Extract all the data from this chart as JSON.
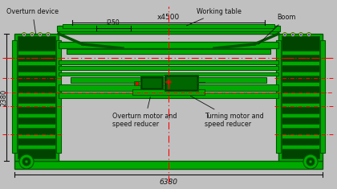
{
  "bg_color": "#c0c0c0",
  "G": "#00aa00",
  "DG": "#005500",
  "MG": "#003300",
  "RD": "#ff0000",
  "BK": "#111111",
  "YL": "#ffff00",
  "BL": "#0000cc",
  "labels": {
    "overturn_device": "Overturn device",
    "working_table": "Working table",
    "boom": "Boom",
    "phi4500": "х4500",
    "l250": "l250",
    "overturn_motor": "Overturn motor and\nspeed reducer",
    "turning_motor": "Turning motor and\nspeed reducer",
    "z2380": "2380",
    "w6380": "6380"
  }
}
